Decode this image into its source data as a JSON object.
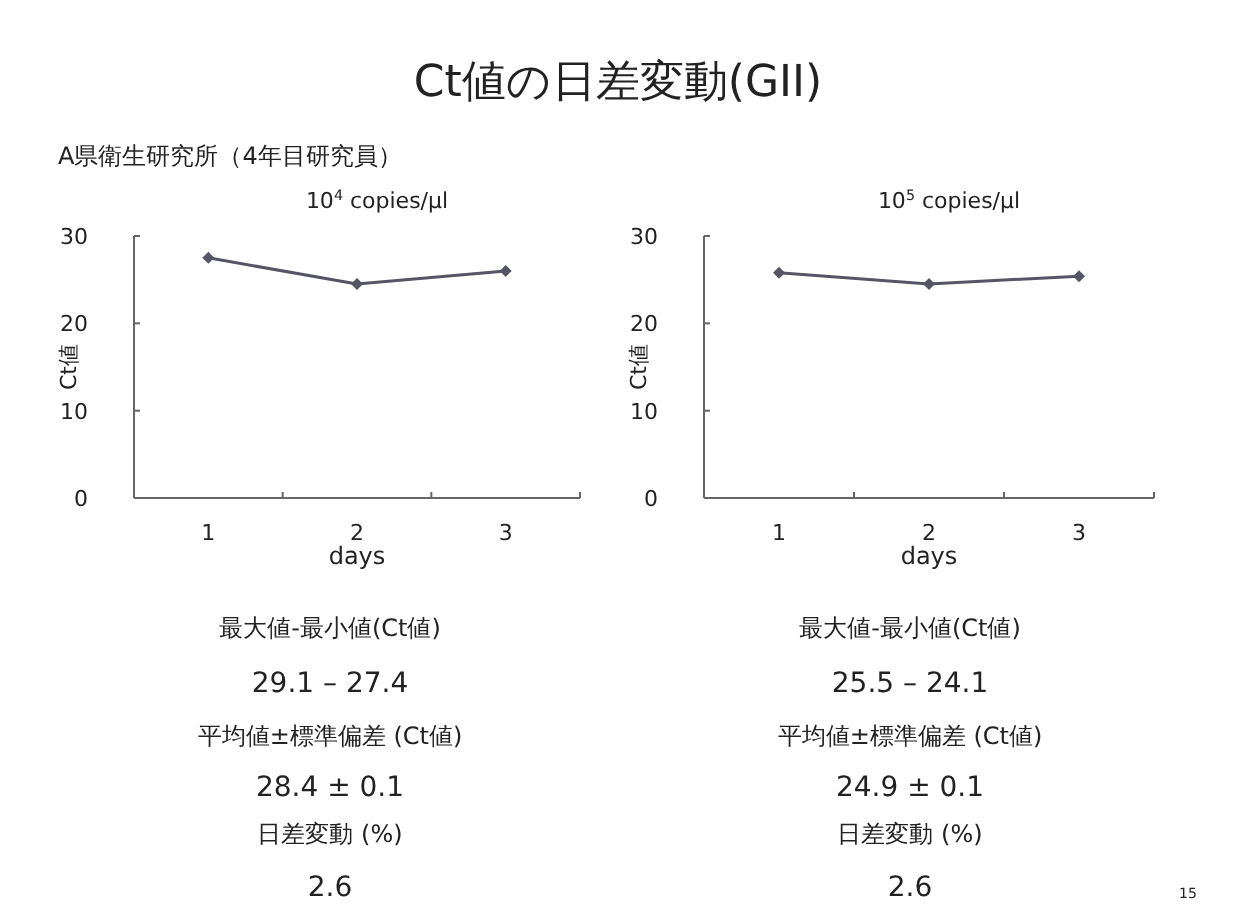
{
  "chart_data": [
    {
      "type": "line",
      "title": "10$^{4}$ copies/μl",
      "xlabel": "days",
      "ylabel": "Ct値",
      "categories": [
        "1",
        "2",
        "3"
      ],
      "ylim": [
        0,
        30
      ],
      "yticks": [
        0,
        10,
        20,
        30
      ],
      "marker": "diamond",
      "line_style": "solid",
      "grid": false,
      "series": [
        {
          "color": "#555566",
          "values": [
            27.5,
            24.5,
            26.0
          ]
        }
      ],
      "annotations": [
        "Ct値の日差変動(GII)",
        "A県衛生研究所（4年目研究員）",
        "最大値-最小値(Ct値)",
        "29.1 – 27.4",
        "平均値±標準偏差 (Ct値)",
        "28.4 ± 0.1",
        "日差変動 (%)",
        "2.6"
      ]
    },
    {
      "type": "line",
      "title": "10$^{5}$ copies/μl",
      "xlabel": "days",
      "ylabel": "Ct値",
      "categories": [
        "1",
        "2",
        "3"
      ],
      "ylim": [
        0,
        30
      ],
      "yticks": [
        0,
        10,
        20,
        30
      ],
      "marker": "diamond",
      "line_style": "solid",
      "grid": false,
      "series": [
        {
          "color": "#555566",
          "values": [
            25.8,
            24.5,
            25.4
          ]
        }
      ],
      "annotations": [
        "最大値-最小値(Ct値)",
        "25.5 – 24.1",
        "平均値±標準偏差 (Ct値)",
        "24.9 ± 0.1",
        "日差変動 (%)",
        "2.6",
        "15"
      ]
    }
  ]
}
